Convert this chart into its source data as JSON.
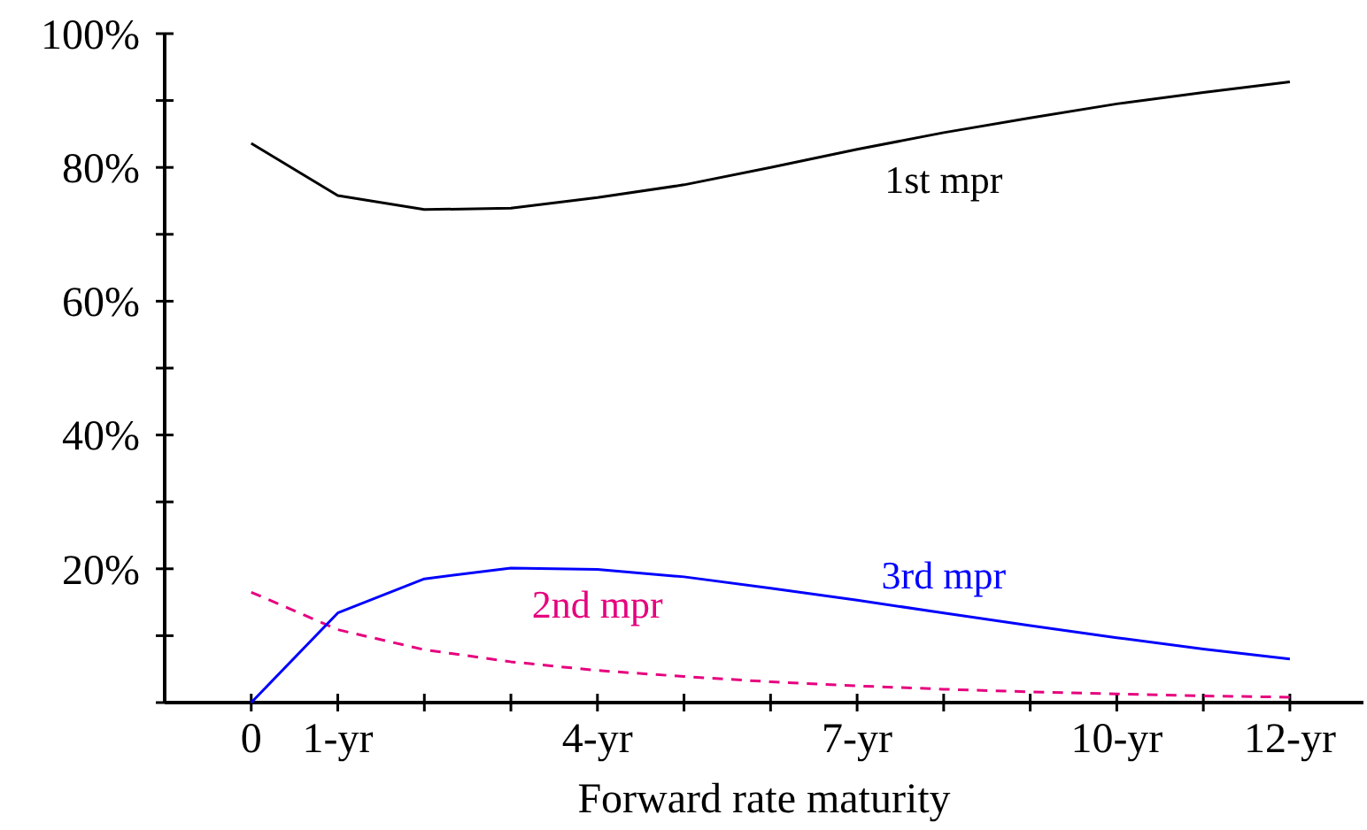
{
  "chart_data": {
    "type": "line",
    "xlabel": "Forward rate maturity",
    "x": [
      0,
      1,
      2,
      3,
      4,
      5,
      6,
      7,
      8,
      9,
      10,
      11,
      12
    ],
    "xlim": [
      -1,
      12.85
    ],
    "xticks": [
      {
        "value": 0,
        "label": "0"
      },
      {
        "value": 1,
        "label": "1-yr"
      },
      {
        "value": 2,
        "label": null
      },
      {
        "value": 3,
        "label": null
      },
      {
        "value": 4,
        "label": "4-yr"
      },
      {
        "value": 5,
        "label": null
      },
      {
        "value": 6,
        "label": null
      },
      {
        "value": 7,
        "label": "7-yr"
      },
      {
        "value": 8,
        "label": null
      },
      {
        "value": 9,
        "label": null
      },
      {
        "value": 10,
        "label": "10-yr"
      },
      {
        "value": 11,
        "label": null
      },
      {
        "value": 12,
        "label": "12-yr"
      }
    ],
    "ylim": [
      0,
      100
    ],
    "yticks": [
      {
        "value": 0,
        "label": null
      },
      {
        "value": 10,
        "label": null
      },
      {
        "value": 20,
        "label": "20%"
      },
      {
        "value": 30,
        "label": null
      },
      {
        "value": 40,
        "label": "40%"
      },
      {
        "value": 50,
        "label": null
      },
      {
        "value": 60,
        "label": "60%"
      },
      {
        "value": 70,
        "label": null
      },
      {
        "value": 80,
        "label": "80%"
      },
      {
        "value": 90,
        "label": null
      },
      {
        "value": 100,
        "label": "100%"
      }
    ],
    "grid": false,
    "marker": "none",
    "series": [
      {
        "name": "1st mpr",
        "color": "#000000",
        "line_style": "solid",
        "values": [
          83.6,
          75.8,
          73.7,
          73.9,
          75.5,
          77.4,
          80,
          82.7,
          85.2,
          87.4,
          89.5,
          91.2,
          92.8
        ]
      },
      {
        "name": "2nd mpr",
        "color": "#e6007e",
        "line_style": "dashed",
        "values": [
          16.5,
          10.9,
          7.9,
          6.1,
          4.8,
          3.9,
          3.1,
          2.5,
          2,
          1.6,
          1.3,
          1,
          0.8
        ]
      },
      {
        "name": "3rd mpr",
        "color": "#0000ff",
        "line_style": "solid",
        "values": [
          0,
          13.4,
          18.5,
          20.1,
          19.9,
          18.8,
          17.1,
          15.3,
          13.4,
          11.5,
          9.7,
          8,
          6.5
        ]
      }
    ]
  }
}
